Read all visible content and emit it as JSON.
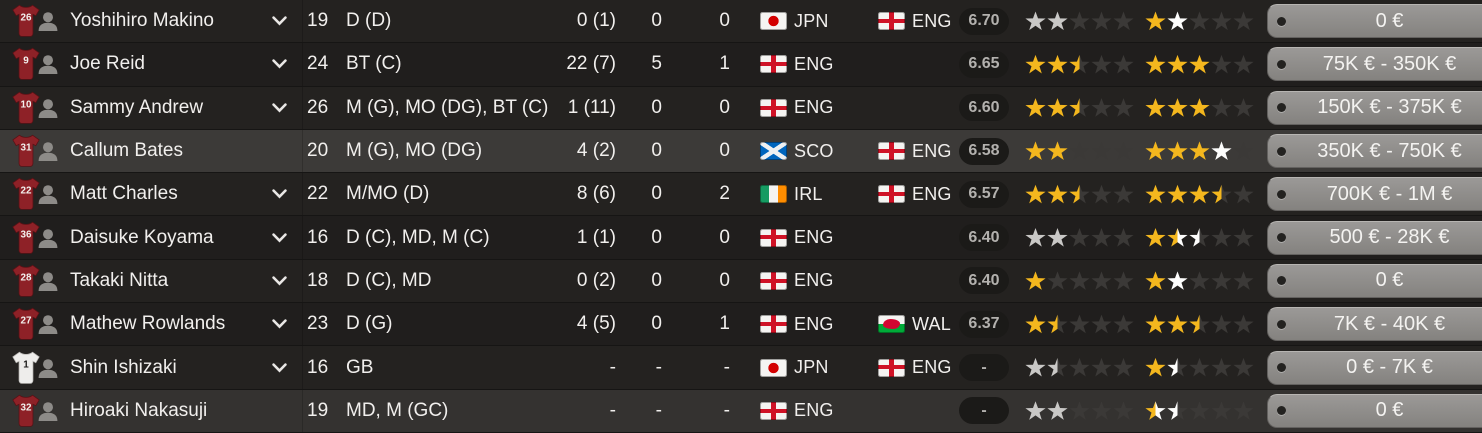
{
  "app": "football-manager-squad-list",
  "colors": {
    "star_gold": "#f4b71e",
    "star_white": "#fdfdfc",
    "star_silver": "#c9c8c6",
    "star_empty": "#3b3937",
    "shirt_red": "#8e2127",
    "shirt_gk_white": "#eeedeb",
    "row_selected": "#3c3a38",
    "value_tag_gray": "#8f8d8b",
    "rating_badge_bg": "#1b1a18"
  },
  "icons": {
    "shirt": "team-shirt-icon",
    "avatar": "player-avatar-icon",
    "chevron": "chevron-down-icon",
    "value_tag_hole": "price-tag-hole"
  },
  "table": {
    "rows": [
      {
        "shirt_number": "26",
        "shirt_type": "outfield",
        "name": "Yoshihiro Makino",
        "has_chevron": true,
        "age": "19",
        "position": "D (D)",
        "apps": "0 (1)",
        "goals": "0",
        "assists": "0",
        "nat1": "JPN",
        "nat2": "ENG",
        "rating": "6.70",
        "ca_stars": [
          "silver",
          "silver",
          "empty",
          "empty",
          "empty"
        ],
        "pa_stars": [
          "gold",
          "white",
          "empty",
          "empty",
          "empty"
        ],
        "value": "0 €",
        "state": "default"
      },
      {
        "shirt_number": "9",
        "shirt_type": "outfield",
        "name": "Joe Reid",
        "has_chevron": true,
        "age": "24",
        "position": "BT (C)",
        "apps": "22 (7)",
        "goals": "5",
        "assists": "1",
        "nat1": "ENG",
        "nat2": "",
        "rating": "6.65",
        "ca_stars": [
          "gold",
          "gold",
          "gold_half",
          "empty",
          "empty"
        ],
        "pa_stars": [
          "gold",
          "gold",
          "gold",
          "empty",
          "empty"
        ],
        "value": "75K € - 350K €",
        "state": "default"
      },
      {
        "shirt_number": "10",
        "shirt_type": "outfield",
        "name": "Sammy Andrew",
        "has_chevron": true,
        "age": "26",
        "position": "M (G), MO (DG), BT (C)",
        "apps": "1 (11)",
        "goals": "0",
        "assists": "0",
        "nat1": "ENG",
        "nat2": "",
        "rating": "6.60",
        "ca_stars": [
          "gold",
          "gold",
          "gold_half",
          "empty",
          "empty"
        ],
        "pa_stars": [
          "gold",
          "gold",
          "gold",
          "empty",
          "empty"
        ],
        "value": "150K € - 375K €",
        "state": "default"
      },
      {
        "shirt_number": "31",
        "shirt_type": "outfield",
        "name": "Callum Bates",
        "has_chevron": false,
        "age": "20",
        "position": "M (G), MO (DG)",
        "apps": "4 (2)",
        "goals": "0",
        "assists": "0",
        "nat1": "SCO",
        "nat2": "ENG",
        "rating": "6.58",
        "ca_stars": [
          "gold",
          "gold",
          "empty",
          "empty",
          "empty"
        ],
        "pa_stars": [
          "gold",
          "gold",
          "gold",
          "white",
          "empty"
        ],
        "value": "350K € - 750K €",
        "state": "selected"
      },
      {
        "shirt_number": "22",
        "shirt_type": "outfield",
        "name": "Matt Charles",
        "has_chevron": true,
        "age": "22",
        "position": "M/MO (D)",
        "apps": "8 (6)",
        "goals": "0",
        "assists": "2",
        "nat1": "IRL",
        "nat2": "ENG",
        "rating": "6.57",
        "ca_stars": [
          "gold",
          "gold",
          "gold_half",
          "empty",
          "empty"
        ],
        "pa_stars": [
          "gold",
          "gold",
          "gold",
          "gold_half",
          "empty"
        ],
        "value": "700K € - 1M €",
        "state": "default"
      },
      {
        "shirt_number": "36",
        "shirt_type": "outfield",
        "name": "Daisuke Koyama",
        "has_chevron": true,
        "age": "16",
        "position": "D (C), MD, M (C)",
        "apps": "1 (1)",
        "goals": "0",
        "assists": "0",
        "nat1": "ENG",
        "nat2": "",
        "rating": "6.40",
        "ca_stars": [
          "silver",
          "silver",
          "empty",
          "empty",
          "empty"
        ],
        "pa_stars": [
          "gold",
          "gold_white",
          "white_half",
          "empty",
          "empty"
        ],
        "value": "500 € - 28K €",
        "state": "default"
      },
      {
        "shirt_number": "28",
        "shirt_type": "outfield",
        "name": "Takaki Nitta",
        "has_chevron": true,
        "age": "18",
        "position": "D (C), MD",
        "apps": "0 (2)",
        "goals": "0",
        "assists": "0",
        "nat1": "ENG",
        "nat2": "",
        "rating": "6.40",
        "ca_stars": [
          "gold",
          "empty",
          "empty",
          "empty",
          "empty"
        ],
        "pa_stars": [
          "gold",
          "white",
          "empty",
          "empty",
          "empty"
        ],
        "value": "0 €",
        "state": "default"
      },
      {
        "shirt_number": "27",
        "shirt_type": "outfield",
        "name": "Mathew Rowlands",
        "has_chevron": true,
        "age": "23",
        "position": "D (G)",
        "apps": "4 (5)",
        "goals": "0",
        "assists": "1",
        "nat1": "ENG",
        "nat2": "WAL",
        "rating": "6.37",
        "ca_stars": [
          "gold",
          "gold_half",
          "empty",
          "empty",
          "empty"
        ],
        "pa_stars": [
          "gold",
          "gold",
          "gold_half",
          "empty",
          "empty"
        ],
        "value": "7K € - 40K €",
        "state": "default"
      },
      {
        "shirt_number": "1",
        "shirt_type": "gk",
        "name": "Shin Ishizaki",
        "has_chevron": true,
        "age": "16",
        "position": "GB",
        "apps": "-",
        "goals": "-",
        "assists": "-",
        "nat1": "JPN",
        "nat2": "ENG",
        "rating": "-",
        "ca_stars": [
          "silver",
          "silver_half",
          "empty",
          "empty",
          "empty"
        ],
        "pa_stars": [
          "gold",
          "white_half",
          "empty",
          "empty",
          "empty"
        ],
        "value": "0 € - 7K €",
        "state": "default"
      },
      {
        "shirt_number": "32",
        "shirt_type": "outfield",
        "name": "Hiroaki Nakasuji",
        "has_chevron": false,
        "age": "19",
        "position": "MD, M (GC)",
        "apps": "-",
        "goals": "-",
        "assists": "-",
        "nat1": "ENG",
        "nat2": "",
        "rating": "-",
        "ca_stars": [
          "silver",
          "silver",
          "empty",
          "empty",
          "empty"
        ],
        "pa_stars": [
          "gold_white",
          "white_half",
          "empty",
          "empty",
          "empty"
        ],
        "value": "0 €",
        "state": "hover"
      }
    ]
  }
}
